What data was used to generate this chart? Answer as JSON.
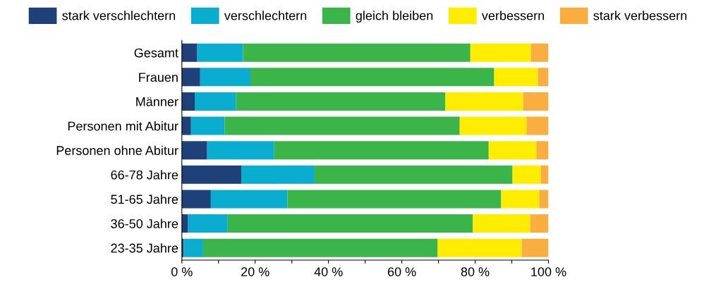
{
  "chart_data": {
    "type": "bar",
    "orientation": "horizontal",
    "stacked": true,
    "categories": [
      "Gesamt",
      "Frauen",
      "Männer",
      "Personen mit Abitur",
      "Personen ohne Abitur",
      "66-78 Jahre",
      "51-65 Jahre",
      "36-50 Jahre",
      "23-35 Jahre"
    ],
    "series": [
      {
        "name": "stark verschlechtern",
        "color": "#1d4178",
        "values": [
          4.2,
          5.0,
          3.5,
          2.5,
          6.9,
          16.2,
          7.9,
          1.7,
          0.5
        ]
      },
      {
        "name": "verschlechtern",
        "color": "#0aadcf",
        "values": [
          12.5,
          13.7,
          11.3,
          9.2,
          18.3,
          20.0,
          20.9,
          10.8,
          5.3
        ]
      },
      {
        "name": "gleich bleiben",
        "color": "#3bb44a",
        "values": [
          62.0,
          66.5,
          57.1,
          64.1,
          58.5,
          54.0,
          58.3,
          66.9,
          64.0
        ]
      },
      {
        "name": "verbessern",
        "color": "#ffed00",
        "values": [
          16.5,
          11.9,
          21.2,
          18.2,
          13.0,
          7.7,
          10.4,
          15.6,
          22.9
        ]
      },
      {
        "name": "stark verbessern",
        "color": "#fbae40",
        "values": [
          4.8,
          2.9,
          6.9,
          6.0,
          3.3,
          2.1,
          2.5,
          5.0,
          7.3
        ]
      }
    ],
    "xlim": [
      0,
      100
    ],
    "xticks": [
      {
        "value": 0,
        "label": "0 %"
      },
      {
        "value": 10,
        "label": null
      },
      {
        "value": 20,
        "label": "20 %"
      },
      {
        "value": 30,
        "label": null
      },
      {
        "value": 40,
        "label": "40 %"
      },
      {
        "value": 50,
        "label": null
      },
      {
        "value": 60,
        "label": "60 %"
      },
      {
        "value": 70,
        "label": null
      },
      {
        "value": 80,
        "label": "80 %"
      },
      {
        "value": 90,
        "label": null
      },
      {
        "value": 100,
        "label": "100 %"
      }
    ],
    "grid": false,
    "legend": "top"
  }
}
